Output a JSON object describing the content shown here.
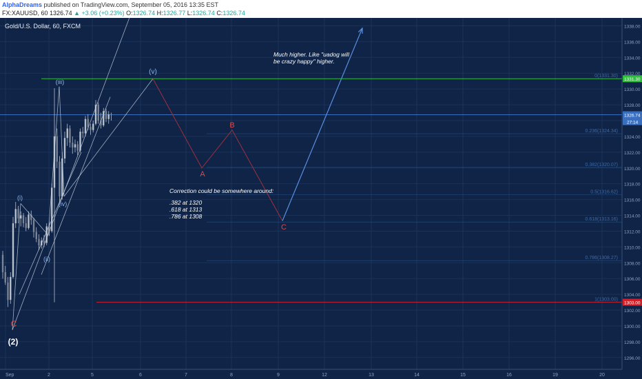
{
  "header": {
    "author": "AlphaDreams",
    "published": "published on TradingView.com, September 05, 2016 13:35 EST",
    "symbol": "FX:XAUUSD, 60",
    "ohlc_o_label": "O:",
    "ohlc_o": "1326.74",
    "ohlc_h_label": "H:",
    "ohlc_h": "1326.77",
    "ohlc_l_label": "L:",
    "ohlc_l": "1326.74",
    "ohlc_c_label": "C:",
    "ohlc_c": "1326.74",
    "last": "1326.74",
    "change": "+3.06 (+0.23%)"
  },
  "colors": {
    "background": "#0f2447",
    "grid": "#1b3259",
    "axis_text": "#8fa3c2",
    "candle": "#b8c0cc",
    "wave_label": "#8eb4e8",
    "correction_path": "#a03040",
    "correction_label": "#e04848",
    "projection": "#5b8fe0",
    "fib_line": "#2a5a95",
    "fib_label": "#3e6aa8",
    "top_fib": "#2fbf3f",
    "bottom_fib": "#d0202a",
    "current_price": "#3a6fc0"
  },
  "chart_data": {
    "type": "candlestick",
    "title": "Gold/U.S. Dollar, 60, FXCM",
    "x_tick_labels": [
      "Sep",
      "2",
      "5",
      "6",
      "7",
      "8",
      "9",
      "12",
      "13",
      "14",
      "15",
      "16",
      "19",
      "20"
    ],
    "y_tick_labels": [
      "1296.00",
      "1298.00",
      "1300.00",
      "1302.00",
      "1304.00",
      "1306.00",
      "1308.00",
      "1310.00",
      "1312.00",
      "1314.00",
      "1316.00",
      "1318.00",
      "1320.00",
      "1322.00",
      "1324.00",
      "1326.00",
      "1328.00",
      "1330.00",
      "1332.00",
      "1334.00",
      "1336.00",
      "1338.00"
    ],
    "y_range": [
      1294.5,
      1339.0
    ],
    "current_price": {
      "value": 1326.74,
      "label": "1326.74",
      "countdown": "27:14"
    },
    "fib_levels": [
      {
        "value": 1331.3,
        "label": "0(1331.30)",
        "tag": "1331.30",
        "kind": "top"
      },
      {
        "value": 1324.34,
        "label": "0.236(1324.34)",
        "kind": "mid"
      },
      {
        "value": 1320.07,
        "label": "0.382(1320.07)",
        "kind": "mid"
      },
      {
        "value": 1316.62,
        "label": "0.5(1316.62)",
        "kind": "mid"
      },
      {
        "value": 1313.16,
        "label": "0.618(1313.16)",
        "kind": "mid"
      },
      {
        "value": 1308.27,
        "label": "0.786(1308.27)",
        "kind": "mid"
      },
      {
        "value": 1303.0,
        "label": "1(1303.00)",
        "tag": "1303.00",
        "kind": "bottom"
      }
    ],
    "wave_labels": [
      "(i)",
      "(ii)",
      "(iii)",
      "(iv)",
      "(v)",
      "(2)",
      "C"
    ],
    "correction_labels": [
      "A",
      "B",
      "C"
    ],
    "correction_path": [
      {
        "label": "(v)",
        "price": 1331.3
      },
      {
        "label": "A",
        "price": 1320.0
      },
      {
        "label": "B",
        "price": 1324.8
      },
      {
        "label": "C",
        "price": 1313.3
      }
    ],
    "projection_target": 1337.7,
    "annotations": {
      "correction_title": "Correction could be somewhere around:",
      "correction_lines": [
        ".382 at 1320",
        ".618 at 1313",
        ".786 at 1308"
      ],
      "higher_lines": [
        "Much higher. Like \"uadog will",
        "be crazy happy\" higher."
      ]
    },
    "candles": [
      [
        1309.0,
        1309.5,
        1306.0,
        1306.8
      ],
      [
        1306.8,
        1307.6,
        1305.2,
        1305.5
      ],
      [
        1305.5,
        1306.2,
        1302.4,
        1303.3
      ],
      [
        1303.3,
        1306.8,
        1302.8,
        1306.2
      ],
      [
        1306.2,
        1313.8,
        1306.0,
        1313.0
      ],
      [
        1313.0,
        1315.7,
        1312.4,
        1314.8
      ],
      [
        1314.8,
        1315.2,
        1313.0,
        1313.6
      ],
      [
        1313.6,
        1314.5,
        1312.6,
        1314.0
      ],
      [
        1314.0,
        1314.3,
        1312.5,
        1313.0
      ],
      [
        1313.0,
        1313.8,
        1312.0,
        1312.4
      ],
      [
        1312.4,
        1314.5,
        1312.2,
        1314.1
      ],
      [
        1314.1,
        1314.6,
        1312.8,
        1313.4
      ],
      [
        1313.4,
        1313.7,
        1311.2,
        1311.9
      ],
      [
        1311.9,
        1312.5,
        1310.6,
        1311.0
      ],
      [
        1311.0,
        1311.6,
        1309.6,
        1310.2
      ],
      [
        1310.2,
        1311.2,
        1309.8,
        1310.8
      ],
      [
        1310.8,
        1311.5,
        1310.0,
        1310.5
      ],
      [
        1310.5,
        1313.0,
        1310.2,
        1312.6
      ],
      [
        1312.6,
        1313.2,
        1311.4,
        1312.0
      ],
      [
        1312.0,
        1318.0,
        1311.8,
        1317.5
      ],
      [
        1317.5,
        1330.1,
        1303.0,
        1324.0
      ],
      [
        1324.0,
        1325.0,
        1320.0,
        1320.8
      ],
      [
        1320.8,
        1321.5,
        1315.6,
        1316.4
      ],
      [
        1316.4,
        1322.0,
        1316.0,
        1321.2
      ],
      [
        1321.2,
        1324.6,
        1320.6,
        1323.8
      ],
      [
        1323.8,
        1325.6,
        1322.8,
        1325.0
      ],
      [
        1325.0,
        1325.4,
        1322.6,
        1323.2
      ],
      [
        1323.2,
        1324.0,
        1321.8,
        1322.6
      ],
      [
        1322.6,
        1323.6,
        1322.0,
        1323.0
      ],
      [
        1323.0,
        1323.4,
        1321.6,
        1322.2
      ],
      [
        1322.2,
        1325.0,
        1322.0,
        1324.6
      ],
      [
        1324.6,
        1325.2,
        1323.8,
        1324.4
      ],
      [
        1324.4,
        1326.6,
        1324.0,
        1326.2
      ],
      [
        1326.2,
        1326.8,
        1324.8,
        1325.2
      ],
      [
        1325.2,
        1325.6,
        1324.2,
        1324.8
      ],
      [
        1324.8,
        1326.0,
        1324.5,
        1325.6
      ],
      [
        1325.6,
        1328.6,
        1325.4,
        1328.0
      ],
      [
        1328.0,
        1328.3,
        1325.6,
        1326.0
      ],
      [
        1326.0,
        1327.0,
        1325.0,
        1325.4
      ],
      [
        1325.4,
        1327.6,
        1325.2,
        1327.2
      ],
      [
        1327.2,
        1327.5,
        1325.8,
        1326.2
      ],
      [
        1326.2,
        1327.2,
        1325.6,
        1326.8
      ],
      [
        1326.8,
        1327.0,
        1326.0,
        1326.74
      ]
    ]
  }
}
